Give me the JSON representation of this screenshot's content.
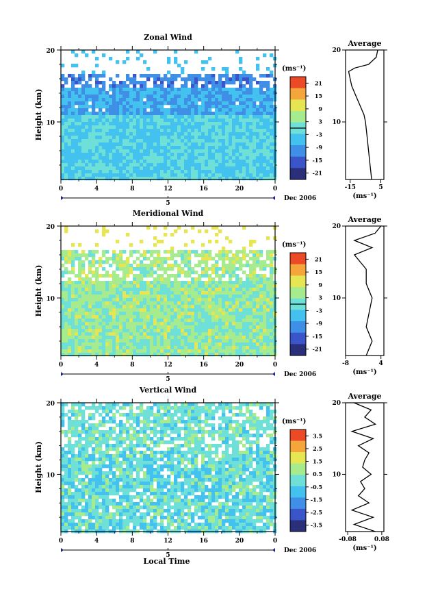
{
  "chart_data": [
    {
      "type": "heatmap",
      "title": "Zonal Wind",
      "ylabel": "Height (km)",
      "ylim": [
        2,
        20
      ],
      "yticks": [
        "20",
        "10"
      ],
      "xticks": [
        "0",
        "4",
        "8",
        "12",
        "16",
        "20",
        "0"
      ],
      "xlim": [
        0,
        24
      ],
      "date_tick": "5",
      "date_label": "Dec 2006",
      "colorbar": {
        "unit": "(ms⁻¹)",
        "labels": [
          "21",
          "15",
          "9",
          "3",
          "-3",
          "-9",
          "-15",
          "-21"
        ],
        "range": [
          -24,
          24
        ],
        "contour": 0
      },
      "profile": {
        "title": "Average",
        "xlabel": "(ms⁻¹)",
        "xticks": [
          "-15",
          "5"
        ],
        "xlim": [
          -18,
          7
        ],
        "yticks": [
          "20",
          "10"
        ],
        "heights": [
          2,
          4,
          6,
          8,
          10,
          11,
          12,
          13,
          14,
          15,
          16,
          17,
          17.5,
          18,
          19,
          20
        ],
        "values": [
          -1,
          -2,
          -3,
          -4,
          -5,
          -6,
          -8,
          -10,
          -12,
          -14,
          -15,
          -16,
          -12,
          -3,
          2,
          3
        ]
      }
    },
    {
      "type": "heatmap",
      "title": "Meridional Wind",
      "ylabel": "Height (km)",
      "ylim": [
        2,
        20
      ],
      "yticks": [
        "20",
        "10"
      ],
      "xticks": [
        "0",
        "4",
        "8",
        "12",
        "16",
        "20",
        "0"
      ],
      "xlim": [
        0,
        24
      ],
      "date_tick": "5",
      "date_label": "Dec 2006",
      "colorbar": {
        "unit": "(ms⁻¹)",
        "labels": [
          "21",
          "15",
          "9",
          "3",
          "-3",
          "-9",
          "-15",
          "-21"
        ],
        "range": [
          -24,
          24
        ],
        "contour": 0
      },
      "profile": {
        "title": "Average",
        "xlabel": "(ms⁻¹)",
        "xticks": [
          "-8",
          "4"
        ],
        "xlim": [
          -8,
          5
        ],
        "yticks": [
          "20",
          "10"
        ],
        "heights": [
          2,
          4,
          6,
          8,
          10,
          12,
          14,
          15,
          16,
          17,
          18,
          19,
          20
        ],
        "values": [
          -1,
          1,
          -1,
          0,
          1,
          -1,
          -1,
          -3,
          -5,
          1,
          -5,
          2,
          4
        ]
      }
    },
    {
      "type": "heatmap",
      "title": "Vertical Wind",
      "ylabel": "Height (km)",
      "xlabel": "Local Time",
      "ylim": [
        2,
        20
      ],
      "yticks": [
        "20",
        "10"
      ],
      "xticks": [
        "0",
        "4",
        "8",
        "12",
        "16",
        "20",
        "0"
      ],
      "xlim": [
        0,
        24
      ],
      "date_tick": "5",
      "date_label": "Dec 2006",
      "colorbar": {
        "unit": "(ms⁻¹)",
        "labels": [
          "3.5",
          "2.5",
          "1.5",
          "0.5",
          "-0.5",
          "-1.5",
          "-2.5",
          "-3.5"
        ],
        "range": [
          -4,
          4
        ]
      },
      "profile": {
        "title": "Average",
        "xlabel": "(ms⁻¹)",
        "xticks": [
          "-0.08",
          "0.08"
        ],
        "xlim": [
          -0.09,
          0.09
        ],
        "yticks": [
          "20",
          "10"
        ],
        "heights": [
          2,
          3,
          4,
          5,
          6,
          7,
          8,
          9,
          10,
          11,
          12,
          13,
          14,
          15,
          16,
          17,
          18,
          19,
          20
        ],
        "values": [
          0.05,
          -0.05,
          0.04,
          -0.06,
          0.02,
          -0.03,
          0.0,
          -0.02,
          0.03,
          -0.01,
          0.0,
          0.02,
          -0.03,
          0.04,
          -0.06,
          0.05,
          0.0,
          0.03,
          -0.05
        ]
      }
    }
  ]
}
